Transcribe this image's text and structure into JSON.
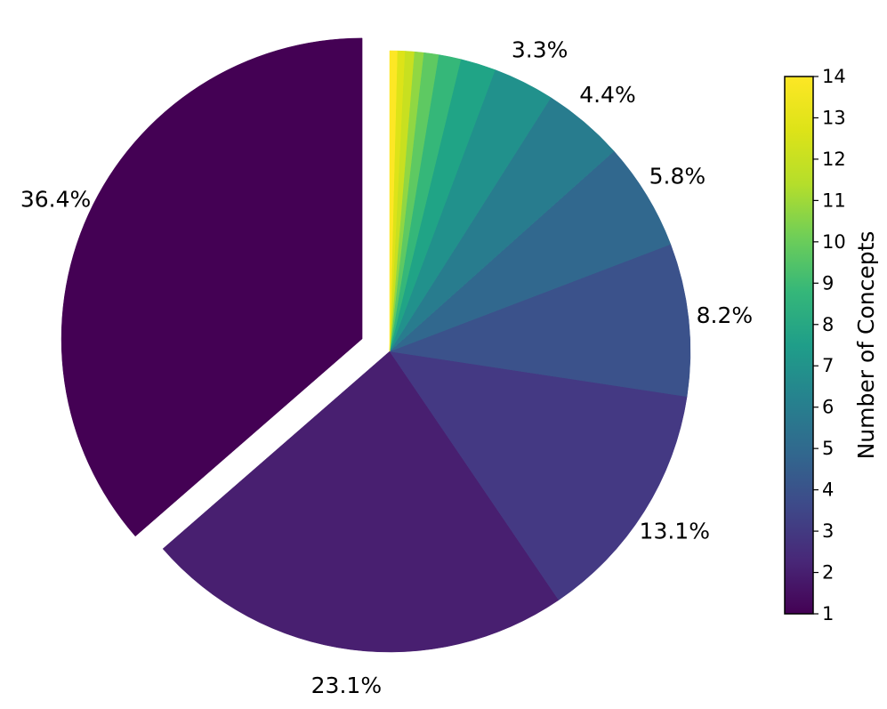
{
  "chart_data": {
    "type": "pie",
    "categories": [
      "1",
      "2",
      "3",
      "4",
      "5",
      "6",
      "7",
      "8",
      "9",
      "10",
      "11",
      "12",
      "13",
      "14"
    ],
    "values": [
      36.4,
      23.1,
      13.1,
      8.2,
      5.8,
      4.4,
      3.3,
      1.9,
      1.2,
      0.8,
      0.5,
      0.5,
      0.4,
      0.4
    ],
    "labels": [
      "36.4%",
      "23.1%",
      "13.1%",
      "8.2%",
      "5.8%",
      "4.4%",
      "3.3%",
      "",
      "",
      "",
      "",
      "",
      "",
      ""
    ],
    "colors": [
      "#440154",
      "#481f70",
      "#443983",
      "#3b528b",
      "#31688e",
      "#287c8e",
      "#21918c",
      "#20a486",
      "#35b779",
      "#5ec962",
      "#90d743",
      "#c8e020",
      "#dde318",
      "#fde725"
    ],
    "exploded": [
      true,
      false,
      false,
      false,
      false,
      false,
      false,
      false,
      false,
      false,
      false,
      false,
      false,
      false
    ],
    "start_angle": "top, clockwise",
    "colorbar": {
      "label": "Number of Concepts",
      "ticks": [
        "1",
        "2",
        "3",
        "4",
        "5",
        "6",
        "7",
        "8",
        "9",
        "10",
        "11",
        "12",
        "13",
        "14"
      ],
      "range": [
        1,
        14
      ],
      "colormap": "viridis"
    }
  }
}
